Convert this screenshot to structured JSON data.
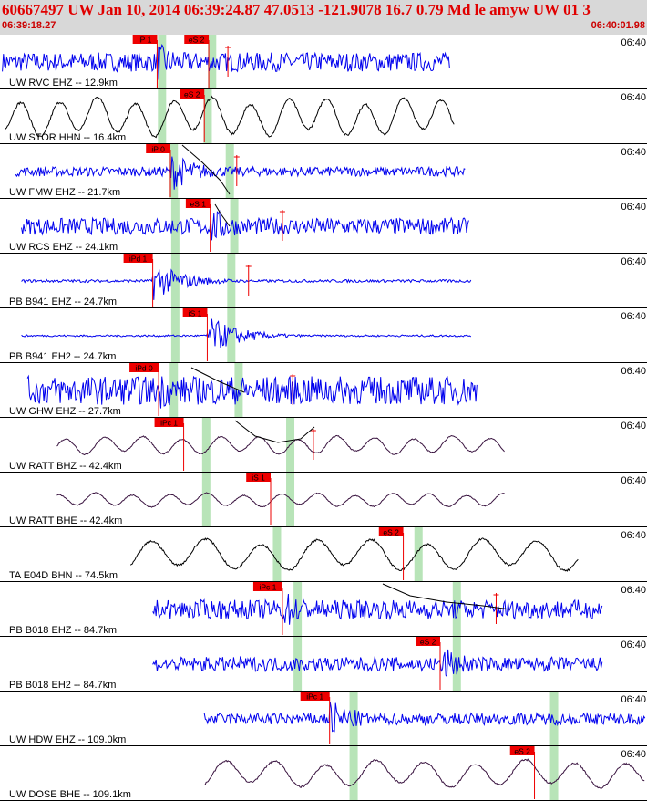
{
  "header": {
    "title": "60667497 UW Jan 10, 2014 06:39:24.87    47.0513 -121.9078 16.7 0.79 Md le amyw UW 01    3",
    "start_time": "06:39:18.27",
    "end_time": "06:40:01.98",
    "time_tick_label": "06:40"
  },
  "colors": {
    "header_bg": "#d8d8d8",
    "title": "#e00000",
    "pick_box": "#ee0000",
    "pick_line": "#ee0000",
    "window_band": "#b8e4b8",
    "trace_blue": "#0000ee",
    "trace_black": "#000000",
    "trace_purple": "#3a1440",
    "theoretical_curve": "#000000"
  },
  "chart_data": {
    "type": "line",
    "title": "60667497 UW Jan 10, 2014 06:39:24.87    47.0513 -121.9078 16.7 0.79 Md le amyw UW 01    3",
    "time_axis": {
      "start": "06:39:18.27",
      "end": "06:40:01.98",
      "tick_label": "06:40"
    },
    "series": [
      {
        "name": "UW RVC EHZ -- 12.9km",
        "color": "blue",
        "character": "noise",
        "amplitude": 0.4,
        "data_start_s": 0.1,
        "data_end_s": 30.5,
        "bands_s": [
          10.9,
          14.3
        ],
        "picks": [
          {
            "label": "iP 1",
            "t": 10.6
          },
          {
            "label": "eS 2",
            "t": 14.1
          }
        ],
        "markers_s": [
          15.4
        ]
      },
      {
        "name": "UW STOR HHN -- 16.4km",
        "color": "black",
        "character": "wave",
        "amplitude": 0.85,
        "data_start_s": 0.2,
        "data_end_s": 30.8,
        "bands_s": [
          10.9,
          14.0
        ],
        "picks": [
          {
            "label": "eS 2",
            "t": 13.8
          }
        ],
        "markers_s": []
      },
      {
        "name": "UW FMW EHZ -- 21.7km",
        "color": "blue",
        "character": "noise",
        "amplitude": 0.2,
        "data_start_s": 1.0,
        "data_end_s": 31.5,
        "bands_s": [
          11.7,
          15.5
        ],
        "picks": [
          {
            "label": "iP 0",
            "t": 11.5
          }
        ],
        "markers_s": [
          16.0
        ]
      },
      {
        "name": "UW RCS EHZ -- 24.1km",
        "color": "blue",
        "character": "noise",
        "amplitude": 0.35,
        "data_start_s": 1.4,
        "data_end_s": 31.8,
        "bands_s": [
          11.8,
          15.8
        ],
        "picks": [
          {
            "label": "eS 1",
            "t": 14.2
          }
        ],
        "markers_s": [
          19.1
        ]
      },
      {
        "name": "PB B941 EHZ -- 24.7km",
        "color": "blue",
        "character": "noise",
        "amplitude": 0.06,
        "data_start_s": 1.4,
        "data_end_s": 31.9,
        "bands_s": [
          11.8,
          15.6
        ],
        "picks": [
          {
            "label": "iPd 1",
            "t": 10.3
          }
        ],
        "markers_s": [
          16.8
        ]
      },
      {
        "name": "PB B941 EH2 -- 24.7km",
        "color": "blue",
        "character": "noise",
        "amplitude": 0.04,
        "data_start_s": 1.4,
        "data_end_s": 31.9,
        "bands_s": [
          11.8,
          15.6
        ],
        "picks": [
          {
            "label": "iS 1",
            "t": 14.0
          }
        ],
        "markers_s": []
      },
      {
        "name": "UW GHW EHZ -- 27.7km",
        "color": "blue",
        "character": "noise",
        "amplitude": 0.6,
        "data_start_s": 1.8,
        "data_end_s": 32.3,
        "bands_s": [
          11.7,
          16.1
        ],
        "picks": [
          {
            "label": "iPd 0",
            "t": 10.7
          }
        ],
        "markers_s": [
          19.8
        ]
      },
      {
        "name": "UW RATT BHZ -- 42.4km",
        "color": "purple",
        "character": "wave",
        "amplitude": 0.4,
        "data_start_s": 3.8,
        "data_end_s": 34.2,
        "bands_s": [
          13.9,
          19.6
        ],
        "picks": [
          {
            "label": "iPc 1",
            "t": 12.4
          }
        ],
        "markers_s": [
          21.2
        ]
      },
      {
        "name": "UW RATT BHE -- 42.4km",
        "color": "purple",
        "character": "wave",
        "amplitude": 0.3,
        "data_start_s": 3.8,
        "data_end_s": 34.2,
        "bands_s": [
          13.9,
          19.6
        ],
        "picks": [
          {
            "label": "iS 1",
            "t": 18.3
          }
        ],
        "markers_s": []
      },
      {
        "name": "TA E04D BHN -- 74.5km",
        "color": "black",
        "character": "wave",
        "amplitude": 0.7,
        "data_start_s": 8.8,
        "data_end_s": 39.2,
        "bands_s": [
          18.7,
          28.3
        ],
        "picks": [
          {
            "label": "eS 2",
            "t": 27.3
          }
        ],
        "markers_s": []
      },
      {
        "name": "PB B018 EHZ -- 84.7km",
        "color": "blue",
        "character": "noise",
        "amplitude": 0.4,
        "data_start_s": 10.3,
        "data_end_s": 40.8,
        "bands_s": [
          20.1,
          30.9
        ],
        "picks": [
          {
            "label": "iPc 1",
            "t": 19.1
          }
        ],
        "markers_s": [
          33.6
        ]
      },
      {
        "name": "PB B018 EH2 -- 84.7km",
        "color": "blue",
        "character": "noise",
        "amplitude": 0.3,
        "data_start_s": 10.3,
        "data_end_s": 40.8,
        "bands_s": [
          20.1,
          30.9
        ],
        "picks": [
          {
            "label": "eS 2",
            "t": 29.8
          }
        ],
        "markers_s": []
      },
      {
        "name": "UW HDW EHZ -- 109.0km",
        "color": "blue",
        "character": "noise",
        "amplitude": 0.25,
        "data_start_s": 13.8,
        "data_end_s": 43.7,
        "bands_s": [
          23.9,
          37.5
        ],
        "picks": [
          {
            "label": "iPc 1",
            "t": 22.3
          }
        ],
        "markers_s": []
      },
      {
        "name": "UW DOSE BHE -- 109.1km",
        "color": "purple",
        "character": "wave",
        "amplitude": 0.6,
        "data_start_s": 13.8,
        "data_end_s": 43.7,
        "bands_s": [
          23.9,
          37.5
        ],
        "picks": [
          {
            "label": "eS 2",
            "t": 36.2
          }
        ],
        "markers_s": []
      }
    ]
  }
}
